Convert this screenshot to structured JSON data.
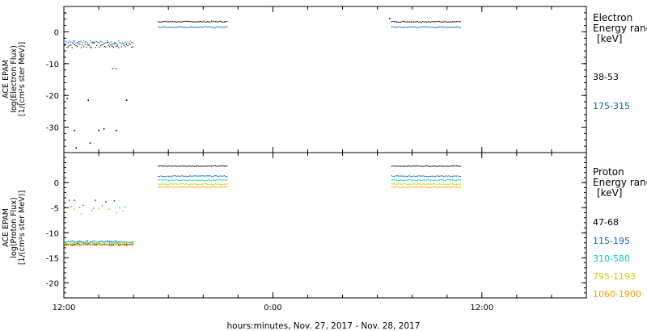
{
  "chart_data": [
    {
      "type": "scatter",
      "panel": "electron",
      "ylabel_lines": [
        "ACE EPAM",
        "log(Electron Flux)",
        "[1/(cm²s ster MeV)]"
      ],
      "ylim": [
        -38,
        8
      ],
      "yticks": [
        0,
        -10,
        -20,
        -30
      ],
      "legend_title_lines": [
        "Electron",
        "Energy  range",
        "[keV]"
      ],
      "series": [
        {
          "name": "38-53",
          "color": "#000000",
          "segments": [
            {
              "x": [
                0,
                2.0
              ],
              "y": -4.2,
              "jitter": 0.9
            },
            {
              "x": [
                2.7,
                4.7
              ],
              "y": 3.2,
              "jitter": 0.15
            },
            {
              "x": [
                9.4,
                11.4
              ],
              "y": 3.2,
              "jitter": 0.15
            }
          ],
          "points": [
            [
              0.1,
              -21
            ],
            [
              0.3,
              -31
            ],
            [
              0.35,
              -36.5
            ],
            [
              0.75,
              -35
            ],
            [
              0.7,
              -21.5
            ],
            [
              1.0,
              -31
            ],
            [
              1.15,
              -30.5
            ],
            [
              1.5,
              -31
            ],
            [
              1.8,
              -21.5
            ],
            [
              9.35,
              4.2
            ]
          ]
        },
        {
          "name": "175-315",
          "color": "#0066cc",
          "segments": [
            {
              "x": [
                0,
                2.0
              ],
              "y": -3.4,
              "jitter": 0.6
            },
            {
              "x": [
                2.7,
                4.7
              ],
              "y": 1.5,
              "jitter": 0.15
            },
            {
              "x": [
                9.4,
                11.4
              ],
              "y": 1.5,
              "jitter": 0.15
            }
          ],
          "points": [
            [
              0.05,
              5.8
            ],
            [
              1.4,
              -11.5
            ],
            [
              1.5,
              -11.5
            ]
          ]
        }
      ]
    },
    {
      "type": "scatter",
      "panel": "proton",
      "ylabel_lines": [
        "ACE EPAM",
        "log(Proton Flux)",
        "[1/(cm²s ster MeV)]"
      ],
      "ylim": [
        -23,
        6
      ],
      "yticks": [
        0,
        -5,
        -10,
        -15,
        -20
      ],
      "legend_title_lines": [
        "Proton",
        "Energy  range",
        "[keV]"
      ],
      "series": [
        {
          "name": "47-68",
          "color": "#000000",
          "segments": [
            {
              "x": [
                0,
                2.0
              ],
              "y": -12.3,
              "jitter": 0.12
            },
            {
              "x": [
                2.7,
                4.7
              ],
              "y": 3.3,
              "jitter": 0.08
            },
            {
              "x": [
                9.4,
                11.4
              ],
              "y": 3.3,
              "jitter": 0.08
            }
          ],
          "points": []
        },
        {
          "name": "115-195",
          "color": "#0066cc",
          "segments": [
            {
              "x": [
                0,
                2.0
              ],
              "y": -11.8,
              "jitter": 0.2
            },
            {
              "x": [
                2.7,
                4.7
              ],
              "y": 1.3,
              "jitter": 0.1
            },
            {
              "x": [
                9.4,
                11.4
              ],
              "y": 1.3,
              "jitter": 0.1
            }
          ],
          "points": [
            [
              0.15,
              -3.5
            ],
            [
              0.3,
              -3.5
            ],
            [
              0.55,
              -4.5
            ],
            [
              0.9,
              -3.5
            ],
            [
              1.2,
              -3.8
            ],
            [
              1.45,
              -3.6
            ]
          ]
        },
        {
          "name": "310-580",
          "color": "#00cccc",
          "segments": [
            {
              "x": [
                0,
                2.0
              ],
              "y": -11.9,
              "jitter": 0.2
            },
            {
              "x": [
                2.7,
                4.7
              ],
              "y": 0.5,
              "jitter": 0.1
            },
            {
              "x": [
                9.4,
                11.4
              ],
              "y": 0.5,
              "jitter": 0.1
            }
          ],
          "points": [
            [
              0.2,
              -4.8
            ],
            [
              0.45,
              -4.9
            ],
            [
              0.85,
              -5.1
            ],
            [
              1.1,
              -4.6
            ],
            [
              1.6,
              -5.0
            ],
            [
              1.75,
              -4.8
            ]
          ]
        },
        {
          "name": "795-1193",
          "color": "#cccc00",
          "segments": [
            {
              "x": [
                0,
                2.0
              ],
              "y": -12.1,
              "jitter": 0.15
            },
            {
              "x": [
                2.7,
                4.7
              ],
              "y": -0.3,
              "jitter": 0.1
            },
            {
              "x": [
                9.4,
                11.4
              ],
              "y": -0.3,
              "jitter": 0.1
            }
          ],
          "points": [
            [
              0.3,
              -5.3
            ],
            [
              0.5,
              -6.2
            ],
            [
              0.8,
              -5.5
            ],
            [
              1.0,
              -5.2
            ],
            [
              1.3,
              -5.3
            ],
            [
              1.7,
              -5.6
            ]
          ]
        },
        {
          "name": "1060-1900",
          "color": "#ff9900",
          "segments": [
            {
              "x": [
                0,
                2.0
              ],
              "y": -12.5,
              "jitter": 0.15
            },
            {
              "x": [
                2.7,
                4.7
              ],
              "y": -0.9,
              "jitter": 0.1
            },
            {
              "x": [
                9.4,
                11.4
              ],
              "y": -0.9,
              "jitter": 0.1
            }
          ],
          "points": [
            [
              1.5,
              -6.0
            ]
          ]
        }
      ]
    }
  ],
  "x_axis": {
    "tick_labels": [
      {
        "x": 0,
        "label": "12:00"
      },
      {
        "x": 6,
        "label": "0:00"
      },
      {
        "x": 12,
        "label": "12:00"
      }
    ],
    "xlim": [
      0,
      15
    ],
    "xlabel": "hours:minutes,  Nov. 27, 2017 - Nov. 28, 2017"
  }
}
